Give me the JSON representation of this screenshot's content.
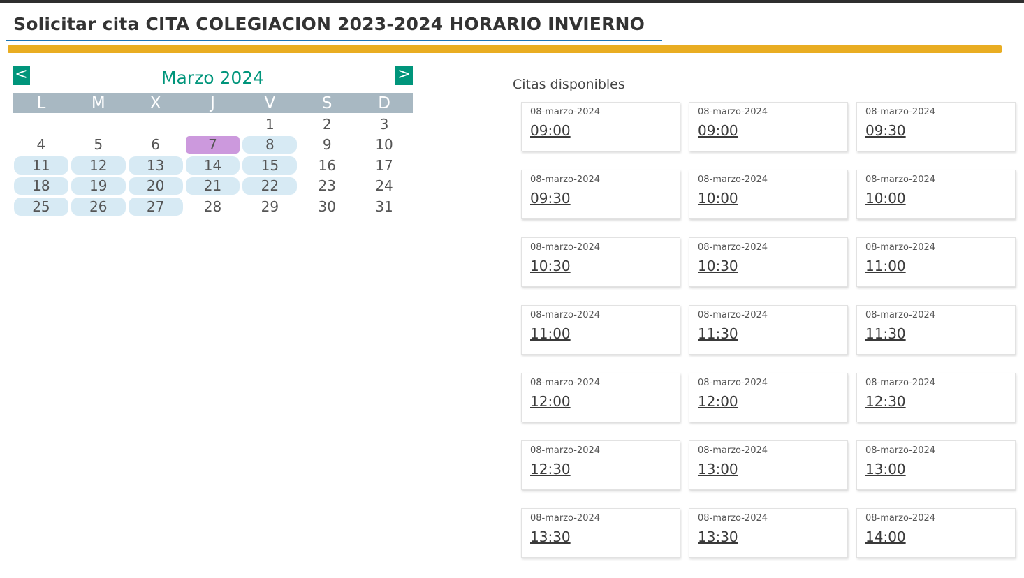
{
  "header": {
    "title": "Solicitar cita CITA COLEGIACION 2023-2024 HORARIO INVIERNO"
  },
  "calendar": {
    "prev_label": "<",
    "next_label": ">",
    "month_title": "Marzo 2024",
    "weekdays": [
      "L",
      "M",
      "X",
      "J",
      "V",
      "S",
      "D"
    ],
    "leading_blanks": 4,
    "selected_day": 7,
    "available_days": [
      8,
      11,
      12,
      13,
      14,
      15,
      18,
      19,
      20,
      21,
      22,
      25,
      26,
      27
    ],
    "days": [
      "1",
      "2",
      "3",
      "4",
      "5",
      "6",
      "7",
      "8",
      "9",
      "10",
      "11",
      "12",
      "13",
      "14",
      "15",
      "16",
      "17",
      "18",
      "19",
      "20",
      "21",
      "22",
      "23",
      "24",
      "25",
      "26",
      "27",
      "28",
      "29",
      "30",
      "31"
    ]
  },
  "slots": {
    "title": "Citas disponibles",
    "items": [
      {
        "date": "08-marzo-2024",
        "time": "09:00"
      },
      {
        "date": "08-marzo-2024",
        "time": "09:00"
      },
      {
        "date": "08-marzo-2024",
        "time": "09:30"
      },
      {
        "date": "08-marzo-2024",
        "time": "09:30"
      },
      {
        "date": "08-marzo-2024",
        "time": "10:00"
      },
      {
        "date": "08-marzo-2024",
        "time": "10:00"
      },
      {
        "date": "08-marzo-2024",
        "time": "10:30"
      },
      {
        "date": "08-marzo-2024",
        "time": "10:30"
      },
      {
        "date": "08-marzo-2024",
        "time": "11:00"
      },
      {
        "date": "08-marzo-2024",
        "time": "11:00"
      },
      {
        "date": "08-marzo-2024",
        "time": "11:30"
      },
      {
        "date": "08-marzo-2024",
        "time": "11:30"
      },
      {
        "date": "08-marzo-2024",
        "time": "12:00"
      },
      {
        "date": "08-marzo-2024",
        "time": "12:00"
      },
      {
        "date": "08-marzo-2024",
        "time": "12:30"
      },
      {
        "date": "08-marzo-2024",
        "time": "12:30"
      },
      {
        "date": "08-marzo-2024",
        "time": "13:00"
      },
      {
        "date": "08-marzo-2024",
        "time": "13:00"
      },
      {
        "date": "08-marzo-2024",
        "time": "13:30"
      },
      {
        "date": "08-marzo-2024",
        "time": "13:30"
      },
      {
        "date": "08-marzo-2024",
        "time": "14:00"
      }
    ]
  },
  "colors": {
    "accent_green": "#00957b",
    "gold_bar": "#e9ad22",
    "title_underline": "#1a73b5",
    "weekday_header": "#a8b8c2",
    "available_day": "#d7eaf4",
    "selected_day": "#cc99dd"
  }
}
